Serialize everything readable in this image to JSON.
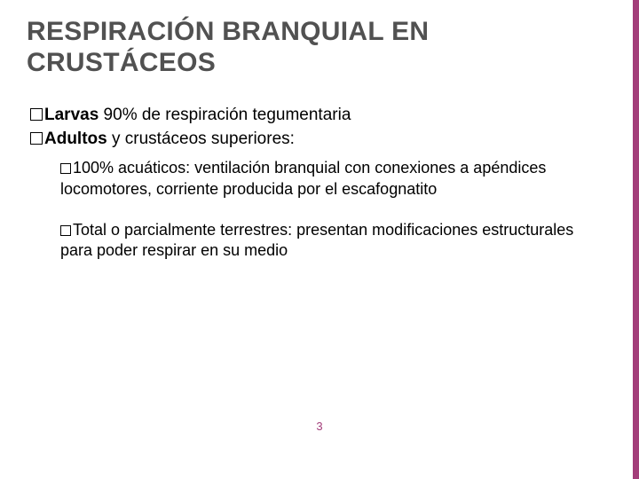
{
  "slide": {
    "background_color": "#ffffff",
    "accent_color": "#a33e7a",
    "title_color": "#515151",
    "title_fontsize": 30,
    "text_color": "#000000",
    "pagenum_color": "#a33e7a",
    "title": "RESPIRACIÓN BRANQUIAL EN CRUSTÁCEOS",
    "bullet1": [
      {
        "lead": "Larvas",
        "rest": " 90% de respiración tegumentaria"
      },
      {
        "lead": "Adultos",
        "rest": " y crustáceos superiores:"
      }
    ],
    "bullet2": [
      {
        "lead": "100%",
        "rest": " acuáticos: ventilación branquial con conexiones a apéndices locomotores, corriente producida por el escafognatito"
      },
      {
        "lead": "Total",
        "rest": " o parcialmente terrestres: presentan modificaciones estructurales para poder respirar en su medio"
      }
    ],
    "page_number": "3"
  }
}
